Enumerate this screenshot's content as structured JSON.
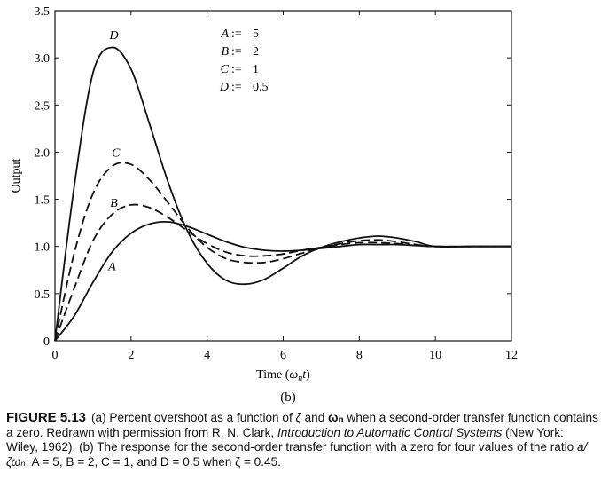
{
  "chart_data": {
    "type": "line",
    "title": "",
    "xlabel": "Time (ω_n t)",
    "xlabel_parts": {
      "main": "Time (",
      "omega": "ω",
      "sub": "n",
      "t": "t",
      "close": ")"
    },
    "ylabel": "Output",
    "xlim": [
      0,
      12
    ],
    "ylim": [
      0,
      3.5
    ],
    "xticks": [
      0,
      2,
      4,
      6,
      8,
      10,
      12
    ],
    "yticks": [
      0,
      0.5,
      1.0,
      1.5,
      2.0,
      2.5,
      3.0,
      3.5
    ],
    "ytick_labels": [
      "0",
      "0.5",
      "1.0",
      "1.5",
      "2.0",
      "2.5",
      "3.0",
      "3.5"
    ],
    "grid": false,
    "zeta": 0.45,
    "series": [
      {
        "name": "A",
        "ratio": 5,
        "style": "solid",
        "x": [
          0,
          0.5,
          1,
          1.5,
          2,
          2.5,
          3,
          3.5,
          4,
          4.5,
          5,
          5.5,
          6,
          6.5,
          7,
          7.5,
          8,
          8.5,
          9,
          9.5,
          10,
          11,
          12
        ],
        "y": [
          0,
          0.26,
          0.62,
          0.94,
          1.14,
          1.24,
          1.26,
          1.21,
          1.13,
          1.05,
          0.99,
          0.96,
          0.95,
          0.96,
          0.98,
          1.0,
          1.02,
          1.02,
          1.02,
          1.01,
          1.0,
          1.0,
          1.0
        ]
      },
      {
        "name": "B",
        "ratio": 2,
        "style": "dashed",
        "x": [
          0,
          0.5,
          1,
          1.5,
          2,
          2.5,
          3,
          3.5,
          4,
          4.5,
          5,
          5.5,
          6,
          6.5,
          7,
          7.5,
          8,
          8.5,
          9,
          9.5,
          10,
          11,
          12
        ],
        "y": [
          0,
          0.55,
          1.06,
          1.34,
          1.44,
          1.41,
          1.3,
          1.16,
          1.03,
          0.94,
          0.9,
          0.9,
          0.92,
          0.96,
          0.99,
          1.02,
          1.04,
          1.04,
          1.03,
          1.01,
          1.0,
          1.0,
          1.0
        ]
      },
      {
        "name": "C",
        "ratio": 1,
        "style": "dashed",
        "x": [
          0,
          0.5,
          1,
          1.5,
          2,
          2.5,
          3,
          3.5,
          4,
          4.5,
          5,
          5.5,
          6,
          6.5,
          7,
          7.5,
          8,
          8.5,
          9,
          9.5,
          10,
          11,
          12
        ],
        "y": [
          0,
          0.92,
          1.56,
          1.85,
          1.87,
          1.7,
          1.45,
          1.19,
          0.99,
          0.87,
          0.83,
          0.83,
          0.87,
          0.93,
          0.98,
          1.03,
          1.06,
          1.07,
          1.05,
          1.02,
          1.0,
          1.0,
          1.0
        ]
      },
      {
        "name": "D",
        "ratio": 0.5,
        "style": "solid",
        "x": [
          0,
          0.5,
          1,
          1.5,
          2,
          2.5,
          3,
          3.5,
          4,
          4.5,
          5,
          5.5,
          6,
          6.5,
          7,
          7.5,
          8,
          8.5,
          9,
          9.5,
          10,
          11,
          12
        ],
        "y": [
          0,
          1.62,
          2.84,
          3.11,
          2.88,
          2.28,
          1.65,
          1.15,
          0.82,
          0.64,
          0.6,
          0.65,
          0.77,
          0.9,
          0.99,
          1.05,
          1.09,
          1.11,
          1.09,
          1.05,
          1.0,
          1.0,
          1.0
        ]
      }
    ],
    "curve_labels": [
      {
        "text": "A",
        "x": 1.5,
        "y": 0.75
      },
      {
        "text": "B",
        "x": 1.55,
        "y": 1.42
      },
      {
        "text": "C",
        "x": 1.6,
        "y": 1.95
      },
      {
        "text": "D",
        "x": 1.55,
        "y": 3.2
      }
    ],
    "legend": {
      "placement": "top-center",
      "entries": [
        {
          "var": "A",
          "op": ":=",
          "value": "5"
        },
        {
          "var": "B",
          "op": ":=",
          "value": "2"
        },
        {
          "var": "C",
          "op": ":=",
          "value": "1"
        },
        {
          "var": "D",
          "op": ":=",
          "value": "0.5"
        }
      ]
    }
  },
  "subfigure_label": "(b)",
  "caption": {
    "label": "FIGURE 5.13",
    "seg1": "(a) Percent overshoot as a function of ",
    "zeta": "ζ",
    "seg2": " and ",
    "omega_n": "ωₙ",
    "seg3": " when a second-order transfer function contains a zero. Redrawn with permission from R. N. Clark, ",
    "book": "Introduction to Automatic Control Systems",
    "seg4": " (New York: Wiley, 1962). (b) The response for the second-order transfer function with a zero for four values of the ratio ",
    "ratio": "a/ζωₙ",
    "seg5": ": A = 5, B = 2, C = 1, and D = 0.5 when ζ = 0.45."
  }
}
